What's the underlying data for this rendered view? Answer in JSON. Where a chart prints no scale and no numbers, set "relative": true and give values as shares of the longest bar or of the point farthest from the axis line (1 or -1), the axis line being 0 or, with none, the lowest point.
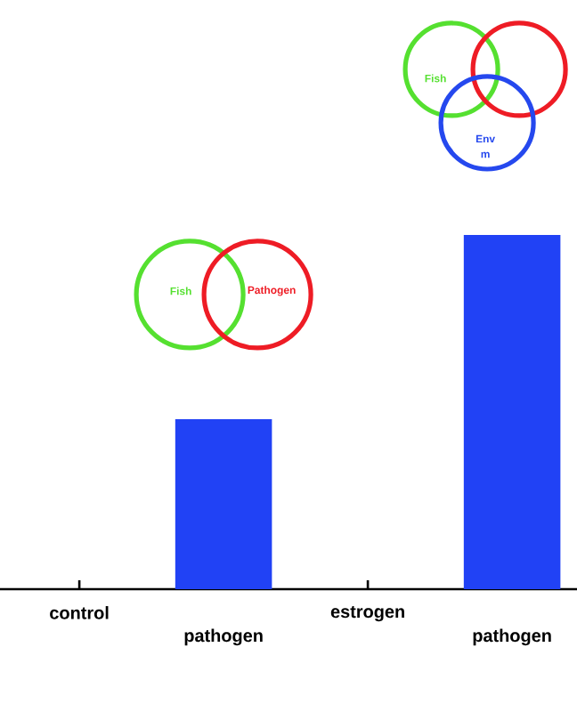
{
  "chart_data": {
    "type": "bar",
    "categories": [
      "control",
      "pathogen",
      "estrogen",
      "pathogen"
    ],
    "values": [
      0,
      0.48,
      0,
      1
    ],
    "relative": true,
    "color": "#2142f5",
    "annotations": [
      "Fish",
      "Pathogen",
      "Fish",
      "Env",
      "m"
    ]
  }
}
